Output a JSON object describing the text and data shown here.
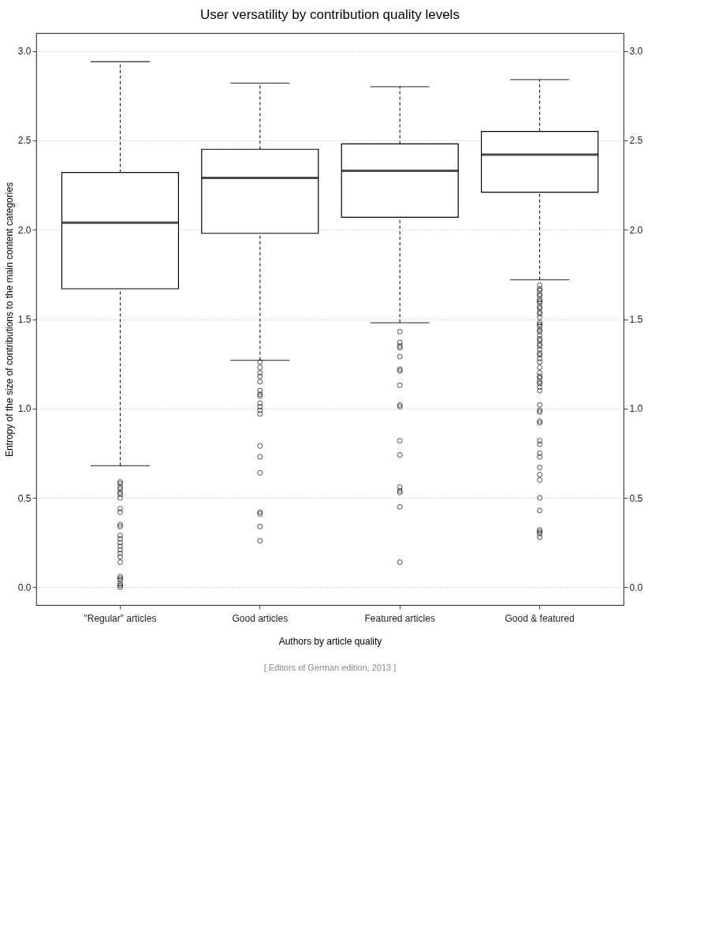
{
  "chart_data": {
    "type": "box",
    "title": "User versatility by contribution quality levels",
    "xlabel": "Authors by article quality",
    "ylabel": "Entropy of the size of contributions to the main content categories",
    "annotations": [
      "[ Editors of German edition, 2013 ]"
    ],
    "categories": [
      "\"Regular\" articles",
      "Good articles",
      "Featured articles",
      "Good & featured"
    ],
    "boxes": [
      {
        "low": 0.68,
        "q1": 1.67,
        "median": 2.04,
        "q3": 2.32,
        "high": 2.94,
        "outliers": [
          0.59,
          0.58,
          0.56,
          0.55,
          0.53,
          0.52,
          0.5,
          0.44,
          0.42,
          0.35,
          0.34,
          0.29,
          0.27,
          0.25,
          0.23,
          0.21,
          0.19,
          0.17,
          0.14,
          0.06,
          0.05,
          0.04,
          0.02,
          0.01,
          0.0
        ]
      },
      {
        "low": 1.27,
        "q1": 1.98,
        "median": 2.29,
        "q3": 2.45,
        "high": 2.82,
        "outliers": [
          1.26,
          1.23,
          1.2,
          1.18,
          1.15,
          1.1,
          1.08,
          1.07,
          1.03,
          1.01,
          0.99,
          0.97,
          0.79,
          0.73,
          0.64,
          0.42,
          0.41,
          0.34,
          0.26
        ]
      },
      {
        "low": 1.48,
        "q1": 2.07,
        "median": 2.33,
        "q3": 2.48,
        "high": 2.8,
        "outliers": [
          1.43,
          1.37,
          1.35,
          1.34,
          1.29,
          1.22,
          1.21,
          1.13,
          1.02,
          1.01,
          0.82,
          0.74,
          0.56,
          0.54,
          0.53,
          0.45,
          0.14
        ]
      },
      {
        "low": 1.72,
        "q1": 2.21,
        "median": 2.42,
        "q3": 2.55,
        "high": 2.84,
        "outliers": [
          1.69,
          1.67,
          1.66,
          1.64,
          1.63,
          1.61,
          1.6,
          1.59,
          1.57,
          1.56,
          1.54,
          1.53,
          1.51,
          1.48,
          1.47,
          1.46,
          1.44,
          1.43,
          1.41,
          1.39,
          1.38,
          1.36,
          1.35,
          1.33,
          1.31,
          1.3,
          1.28,
          1.26,
          1.23,
          1.2,
          1.18,
          1.17,
          1.15,
          1.14,
          1.12,
          1.1,
          1.02,
          0.99,
          0.98,
          0.93,
          0.92,
          0.82,
          0.8,
          0.75,
          0.73,
          0.67,
          0.63,
          0.6,
          0.5,
          0.43,
          0.32,
          0.31,
          0.3,
          0.28
        ]
      }
    ],
    "ylim": [
      -0.1,
      3.1
    ],
    "yticks": [
      {
        "value": 0,
        "label": "0.0"
      },
      0.5,
      {
        "value": 1,
        "label": "1.0"
      },
      1.5,
      {
        "value": 2,
        "label": "2.0"
      },
      2.5,
      {
        "value": 3,
        "label": "3.0"
      }
    ],
    "y2lim": [
      -0.1,
      3.1
    ],
    "y2ticks": [
      {
        "value": 0,
        "label": "0.0"
      },
      0.5,
      {
        "value": 1,
        "label": "1.0"
      },
      1.5,
      {
        "value": 2,
        "label": "2.0"
      },
      2.5,
      {
        "value": 3,
        "label": "3.0"
      }
    ],
    "grid": "y",
    "marker": "circle"
  }
}
